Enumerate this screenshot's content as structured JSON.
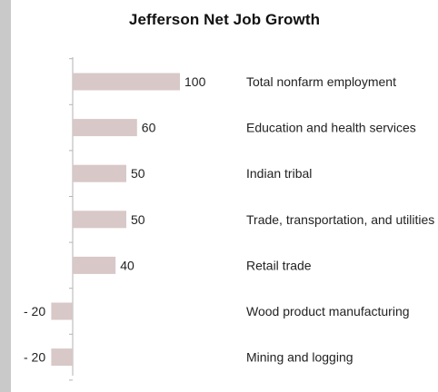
{
  "chart_data": {
    "type": "bar",
    "orientation": "horizontal",
    "title": "Jefferson Net Job Growth",
    "categories": [
      "Total nonfarm employment",
      "Education and health services",
      "Indian tribal",
      "Trade, transportation, and utilities",
      "Retail trade",
      "Wood product manufacturing",
      "Mining and logging"
    ],
    "values": [
      100,
      60,
      50,
      50,
      40,
      -20,
      -20
    ],
    "value_labels": [
      "100",
      "60",
      "50",
      "50",
      "40",
      "- 20",
      "- 20"
    ],
    "bar_color": "#d9c8c8",
    "axis_color": "#b3b3b3",
    "grid": false,
    "legend": "none"
  }
}
